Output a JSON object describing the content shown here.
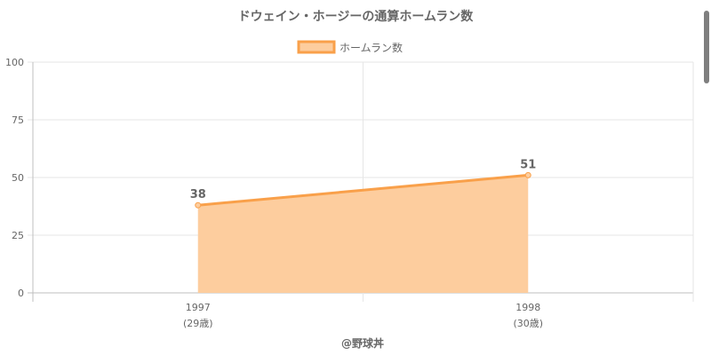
{
  "chart_data": {
    "type": "area",
    "title": "ドウェイン・ホージーの通算ホームラン数",
    "legend": {
      "label": "ホームラン数",
      "position": "top"
    },
    "categories": [
      {
        "year": "1997",
        "age": "(29歳)"
      },
      {
        "year": "1998",
        "age": "(30歳)"
      }
    ],
    "series": [
      {
        "name": "ホームラン数",
        "values": [
          38,
          51
        ]
      }
    ],
    "ylim": [
      0,
      100
    ],
    "yticks": [
      0,
      25,
      50,
      75,
      100
    ],
    "grid": true,
    "credit": "@野球丼",
    "colors": {
      "line": "#f9a04a",
      "fill": "#fdcd9e",
      "grid": "#e6e6e6",
      "axis": "#bfbfbf"
    }
  }
}
